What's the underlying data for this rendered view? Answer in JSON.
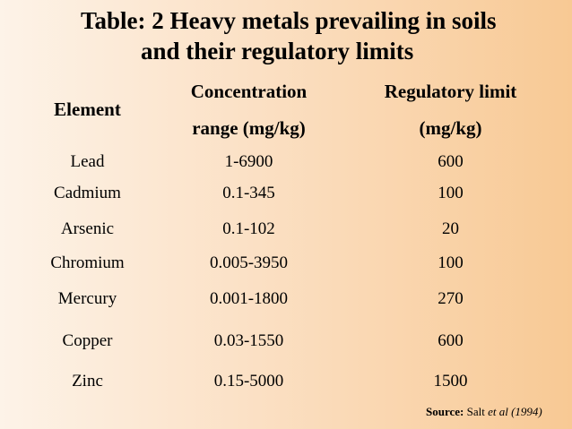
{
  "title": {
    "line1": "Table: 2 Heavy metals prevailing in soils",
    "line2": "and their regulatory limits"
  },
  "table": {
    "headers": {
      "element": "Element",
      "concentration_line1": "Concentration",
      "concentration_line2": "range (mg/kg)",
      "limit_line1": "Regulatory limit",
      "limit_line2": "(mg/kg)"
    },
    "rows": [
      {
        "element": "Lead",
        "range": "1-6900",
        "limit": "600"
      },
      {
        "element": "Cadmium",
        "range": "0.1-345",
        "limit": "100"
      },
      {
        "element": "Arsenic",
        "range": "0.1-102",
        "limit": "20"
      },
      {
        "element": "Chromium",
        "range": "0.005-3950",
        "limit": "100"
      },
      {
        "element": "Mercury",
        "range": "0.001-1800",
        "limit": "270"
      },
      {
        "element": "Copper",
        "range": "0.03-1550",
        "limit": "600"
      },
      {
        "element": "Zinc",
        "range": "0.15-5000",
        "limit": "1500"
      }
    ]
  },
  "source": {
    "label": "Source:",
    "author": "Salt",
    "etal_year": "et al (1994)"
  }
}
